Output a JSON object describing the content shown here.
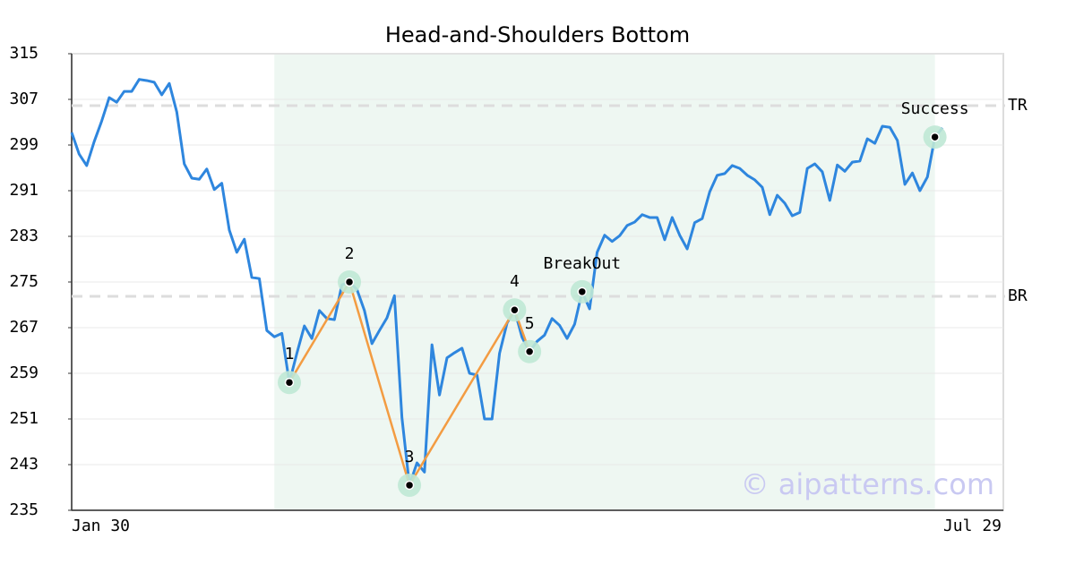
{
  "chart_data": {
    "type": "line",
    "title": "Head-and-Shoulders Bottom",
    "categories": [
      "Jan 30",
      null,
      null,
      null,
      null,
      null,
      null,
      null,
      null,
      null,
      null,
      null,
      null,
      null,
      null,
      null,
      null,
      null,
      null,
      null,
      null,
      null,
      null,
      null,
      null,
      null,
      null,
      null,
      null,
      null,
      null,
      null,
      null,
      null,
      null,
      null,
      null,
      null,
      null,
      null,
      null,
      null,
      null,
      null,
      null,
      null,
      null,
      null,
      null,
      null,
      null,
      null,
      null,
      null,
      null,
      null,
      null,
      null,
      null,
      null,
      null,
      null,
      null,
      null,
      null,
      null,
      null,
      null,
      null,
      null,
      null,
      null,
      null,
      null,
      null,
      null,
      null,
      null,
      null,
      null,
      null,
      null,
      null,
      null,
      null,
      null,
      null,
      null,
      null,
      null,
      null,
      null,
      null,
      null,
      null,
      null,
      null,
      null,
      null,
      null,
      null,
      null,
      null,
      null,
      null,
      null,
      null,
      null,
      null,
      null,
      null,
      null,
      null,
      null,
      null,
      null,
      "Jul 29"
    ],
    "values": [
      301.2,
      297.4,
      295.4,
      299.6,
      303.2,
      307.3,
      306.5,
      308.4,
      308.4,
      310.5,
      310.3,
      310,
      307.8,
      309.8,
      304.8,
      295.7,
      293.2,
      293,
      294.8,
      291.2,
      292.3,
      284.1,
      280.2,
      282.5,
      275.8,
      275.6,
      266.5,
      265.4,
      266,
      257.4,
      262.5,
      267.3,
      265.1,
      270,
      268.6,
      268.4,
      274.5,
      275,
      273.7,
      270,
      264.2,
      266.5,
      268.7,
      272.6,
      251.2,
      239.4,
      243.3,
      241.7,
      264,
      255.2,
      261.7,
      262.6,
      263.4,
      259,
      258.7,
      251,
      251,
      262.5,
      267.8,
      270.1,
      265.3,
      262.8,
      264.6,
      265.7,
      268.6,
      267.4,
      265.1,
      267.6,
      273.3,
      270.3,
      280.2,
      283.2,
      282.1,
      283.1,
      284.9,
      285.5,
      286.8,
      286.3,
      286.3,
      282.4,
      286.3,
      283.2,
      280.8,
      285.4,
      286.1,
      290.8,
      293.7,
      294,
      295.4,
      294.9,
      293.7,
      292.9,
      291.6,
      286.8,
      290.2,
      288.8,
      286.6,
      287.2,
      294.9,
      295.7,
      294.3,
      289.3,
      295.5,
      294.4,
      296,
      296.2,
      300.1,
      299.3,
      302.3,
      302.1,
      299.8,
      292.1,
      294.1,
      291,
      293.4,
      300.4,
      302
    ],
    "point_labels": [
      null,
      null,
      null,
      null,
      null,
      null,
      null,
      null,
      null,
      null,
      null,
      null,
      null,
      null,
      null,
      null,
      null,
      null,
      null,
      null,
      null,
      null,
      null,
      null,
      null,
      null,
      null,
      null,
      null,
      "1",
      null,
      null,
      null,
      null,
      null,
      null,
      null,
      "2",
      null,
      null,
      null,
      null,
      null,
      null,
      null,
      "3",
      null,
      null,
      null,
      null,
      null,
      null,
      null,
      null,
      null,
      null,
      null,
      null,
      null,
      "4",
      null,
      "5",
      null,
      null,
      null,
      null,
      null,
      null,
      "BreakOut",
      null,
      null,
      null,
      null,
      null,
      null,
      null,
      null,
      null,
      null,
      null,
      null,
      null,
      null,
      null,
      null,
      null,
      null,
      null,
      null,
      null,
      null,
      null,
      null,
      null,
      null,
      null,
      null,
      null,
      null,
      null,
      null,
      null,
      null,
      null,
      null,
      null,
      null,
      null,
      null,
      null,
      null,
      null,
      null,
      null,
      null,
      "Success",
      null
    ],
    "color": "#2e86de",
    "pattern_color": "#f39c42",
    "marker_color": "#bfe8d5",
    "shade_color": "#eef7f2",
    "shaded_range": [
      27,
      115
    ],
    "hlines": [
      {
        "value": 305.9,
        "label": "TR"
      },
      {
        "value": 272.5,
        "label": "BR"
      }
    ],
    "ylim": [
      235,
      315
    ],
    "yticks": [
      235,
      243,
      251,
      259,
      267,
      275,
      283,
      291,
      299,
      307,
      315
    ],
    "grid": true,
    "watermark": "© aipatterns.com"
  }
}
